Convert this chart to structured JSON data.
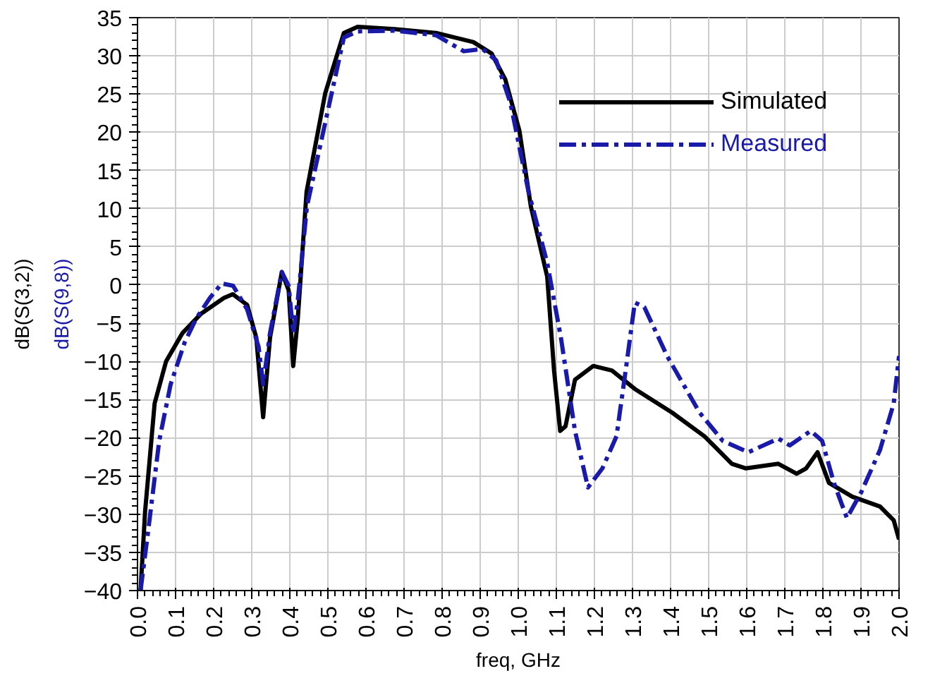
{
  "chart_data": {
    "type": "line",
    "xlabel": "freq, GHz",
    "ylabel": "dB(S(9,8))\ndB(S(3,2))",
    "xlim": [
      0,
      2
    ],
    "ylim": [
      -40,
      35
    ],
    "xticks": [
      {
        "value": 0,
        "label": "0.0"
      },
      {
        "value": 0.1,
        "label": "0.1"
      },
      {
        "value": 0.2,
        "label": "0.2"
      },
      {
        "value": 0.3,
        "label": "0.3"
      },
      {
        "value": 0.4,
        "label": "0.4"
      },
      {
        "value": 0.5,
        "label": "0.5"
      },
      {
        "value": 0.6,
        "label": "0.6"
      },
      {
        "value": 0.7,
        "label": "0.7"
      },
      {
        "value": 0.8,
        "label": "0.8"
      },
      {
        "value": 0.9,
        "label": "0.9"
      },
      {
        "value": 1,
        "label": "1.0"
      },
      {
        "value": 1.1,
        "label": "1.1"
      },
      {
        "value": 1.2,
        "label": "1.2"
      },
      {
        "value": 1.3,
        "label": "1.3"
      },
      {
        "value": 1.4,
        "label": "1.4"
      },
      {
        "value": 1.5,
        "label": "1.5"
      },
      {
        "value": 1.6,
        "label": "1.6"
      },
      {
        "value": 1.7,
        "label": "1.7"
      },
      {
        "value": 1.8,
        "label": "1.8"
      },
      {
        "value": 1.9,
        "label": "1.9"
      },
      {
        "value": 2,
        "label": "2.0"
      }
    ],
    "yticks": [
      -40,
      -35,
      -30,
      -25,
      -20,
      -15,
      -10,
      -5,
      0,
      5,
      10,
      15,
      20,
      25,
      30,
      35
    ],
    "grid": true,
    "legend": "top right",
    "series": [
      {
        "name": "Simulated",
        "color": "#000000",
        "line_style": "solid",
        "x": [
          0.008,
          0.02,
          0.045,
          0.075,
          0.118,
          0.166,
          0.227,
          0.25,
          0.288,
          0.312,
          0.33,
          0.348,
          0.379,
          0.397,
          0.409,
          0.421,
          0.444,
          0.493,
          0.542,
          0.578,
          0.675,
          0.784,
          0.882,
          0.93,
          0.966,
          1.003,
          1.033,
          1.076,
          1.094,
          1.11,
          1.124,
          1.149,
          1.197,
          1.246,
          1.306,
          1.404,
          1.489,
          1.561,
          1.598,
          1.683,
          1.731,
          1.756,
          1.786,
          1.816,
          1.877,
          1.95,
          1.986,
          2.0
        ],
        "values": [
          -40,
          -29.6,
          -15.5,
          -10,
          -6.3,
          -3.8,
          -1.7,
          -1.2,
          -2.6,
          -6.9,
          -17.3,
          -6.9,
          1.7,
          -0.7,
          -10.6,
          -4.4,
          12.2,
          25.1,
          33,
          33.8,
          33.5,
          33,
          31.8,
          30.3,
          26.9,
          20.2,
          10.3,
          1.1,
          -11.2,
          -19.1,
          -18.5,
          -12.4,
          -10.6,
          -11.2,
          -13.6,
          -16.7,
          -19.8,
          -23.4,
          -24,
          -23.4,
          -24.7,
          -24,
          -21.9,
          -25.9,
          -27.7,
          -29,
          -30.8,
          -33.3
        ]
      },
      {
        "name": "Measured",
        "color": "#1a1aaa",
        "line_style": "dashdot",
        "x": [
          0.008,
          0.027,
          0.057,
          0.087,
          0.124,
          0.154,
          0.19,
          0.221,
          0.251,
          0.288,
          0.318,
          0.33,
          0.348,
          0.379,
          0.397,
          0.409,
          0.421,
          0.445,
          0.542,
          0.578,
          0.675,
          0.784,
          0.857,
          0.906,
          0.942,
          0.979,
          1.027,
          1.076,
          1.112,
          1.149,
          1.183,
          1.221,
          1.258,
          1.282,
          1.306,
          1.331,
          1.391,
          1.476,
          1.537,
          1.604,
          1.683,
          1.713,
          1.768,
          1.798,
          1.829,
          1.863,
          1.901,
          1.95,
          1.986,
          2.0
        ],
        "values": [
          -40,
          -32.6,
          -20.4,
          -13,
          -7.5,
          -4.4,
          -1.7,
          0.2,
          -0.1,
          -3.2,
          -8.1,
          -13,
          -6.3,
          1.7,
          -0.1,
          -6.3,
          -2,
          10.3,
          32.4,
          33.2,
          33.3,
          32.7,
          30.6,
          30.9,
          29.4,
          23.9,
          12.2,
          2.9,
          -6.9,
          -19.1,
          -26.5,
          -24,
          -19.8,
          -11.2,
          -2.3,
          -2.9,
          -9.3,
          -16.7,
          -20.4,
          -21.9,
          -20.1,
          -21,
          -19.1,
          -20.4,
          -25.9,
          -30.5,
          -27.1,
          -21.6,
          -15.5,
          -9.3
        ]
      }
    ]
  }
}
